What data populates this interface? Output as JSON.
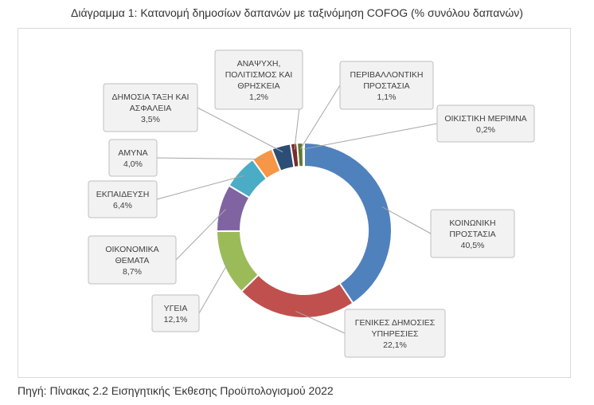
{
  "title": "Διάγραμμα 1: Κατανομή δημοσίων δαπανών με ταξινόμηση COFOG (% συνόλου δαπανών)",
  "source": "Πηγή: Πίνακας 2.2 Εισηγητικής Έκθεσης Προϋπολογισμού 2022",
  "chart_data": {
    "type": "pie",
    "variant": "donut",
    "unit": "%",
    "slices": [
      {
        "name": "ΚΟΙΝΩΝΙΚΗ ΠΡΟΣΤΑΣΙΑ",
        "label_lines": [
          "ΚΟΙΝΩΝΙΚΗ",
          "ΠΡΟΣΤΑΣΙΑ"
        ],
        "value": 40.5,
        "value_label": "40,5%",
        "color": "#4f81bd"
      },
      {
        "name": "ΓΕΝΙΚΕΣ ΔΗΜΟΣΙΕΣ ΥΠΗΡΕΣΙΕΣ",
        "label_lines": [
          "ΓΕΝΙΚΕΣ ΔΗΜΟΣΙΕΣ",
          "ΥΠΗΡΕΣΙΕΣ"
        ],
        "value": 22.1,
        "value_label": "22,1%",
        "color": "#c0504d"
      },
      {
        "name": "ΥΓΕΙΑ",
        "label_lines": [
          "ΥΓΕΙΑ"
        ],
        "value": 12.1,
        "value_label": "12,1%",
        "color": "#9bbb59"
      },
      {
        "name": "ΟΙΚΟΝΟΜΙΚΑ ΘΕΜΑΤΑ",
        "label_lines": [
          "ΟΙΚΟΝΟΜΙΚΑ",
          "ΘΕΜΑΤΑ"
        ],
        "value": 8.7,
        "value_label": "8,7%",
        "color": "#8064a2"
      },
      {
        "name": "ΕΚΠΑΙΔΕΥΣΗ",
        "label_lines": [
          "ΕΚΠΑΙΔΕΥΣΗ"
        ],
        "value": 6.4,
        "value_label": "6,4%",
        "color": "#4bacc6"
      },
      {
        "name": "ΑΜΥΝΑ",
        "label_lines": [
          "ΑΜΥΝΑ"
        ],
        "value": 4.0,
        "value_label": "4,0%",
        "color": "#f79646"
      },
      {
        "name": "ΔΗΜΟΣΙΑ ΤΑΞΗ ΚΑΙ ΑΣΦΑΛΕΙΑ",
        "label_lines": [
          "ΔΗΜΟΣΙΑ ΤΑΞΗ ΚΑΙ",
          "ΑΣΦΑΛΕΙΑ"
        ],
        "value": 3.5,
        "value_label": "3,5%",
        "color": "#2c4d75"
      },
      {
        "name": "ΑΝΑΨΥΧΗ, ΠΟΛΙΤΙΣΜΟΣ ΚΑΙ ΘΡΗΣΚΕΙΑ",
        "label_lines": [
          "ΑΝΑΨΥΧΗ,",
          "ΠΟΛΙΤΙΣΜΟΣ ΚΑΙ",
          "ΘΡΗΣΚΕΙΑ"
        ],
        "value": 1.2,
        "value_label": "1,2%",
        "color": "#772c2a"
      },
      {
        "name": "ΠΕΡΙΒΑΛΛΟΝΤΙΚΗ ΠΡΟΣΤΑΣΙΑ",
        "label_lines": [
          "ΠΕΡΙΒΑΛΛΟΝΤΙΚΗ",
          "ΠΡΟΣΤΑΣΙΑ"
        ],
        "value": 1.1,
        "value_label": "1,1%",
        "color": "#5f7530"
      },
      {
        "name": "ΟΙΚΙΣΤΙΚΗ ΜΕΡΙΜΝΑ",
        "label_lines": [
          "ΟΙΚΙΣΤΙΚΗ ΜΕΡΙΜΝΑ"
        ],
        "value": 0.2,
        "value_label": "0,2%",
        "color": "#4d3b62"
      }
    ]
  }
}
